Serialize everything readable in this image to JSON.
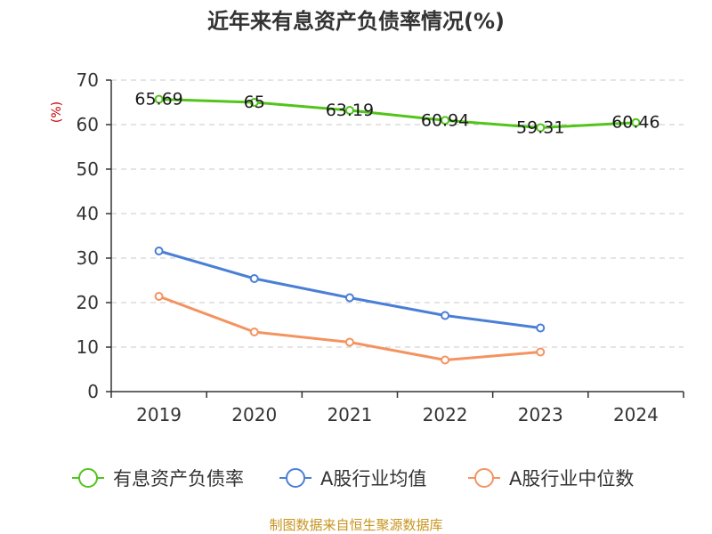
{
  "chart_data": {
    "type": "line",
    "title": "近年来有息资产负债率情况(%)",
    "ylabel": "(%)",
    "xlabel": "",
    "categories": [
      "2019",
      "2020",
      "2021",
      "2022",
      "2023",
      "2024"
    ],
    "ylim": [
      0,
      70
    ],
    "yticks": [
      0,
      10,
      20,
      30,
      40,
      50,
      60,
      70
    ],
    "grid": true,
    "legend_position": "bottom",
    "series": [
      {
        "name": "有息资产负债率",
        "color": "#52c41a",
        "values": [
          65.69,
          65,
          63.19,
          60.94,
          59.31,
          60.46
        ],
        "data_labels": [
          "65.69",
          "65",
          "63.19",
          "60.94",
          "59.31",
          "60.46"
        ]
      },
      {
        "name": "A股行业均值",
        "color": "#4a7fd6",
        "values": [
          31.6,
          25.4,
          21.1,
          17.1,
          14.3,
          null
        ]
      },
      {
        "name": "A股行业中位数",
        "color": "#f49360",
        "values": [
          21.4,
          13.4,
          11.1,
          7.1,
          8.9,
          null
        ]
      }
    ]
  },
  "source": "制图数据来自恒生聚源数据库"
}
